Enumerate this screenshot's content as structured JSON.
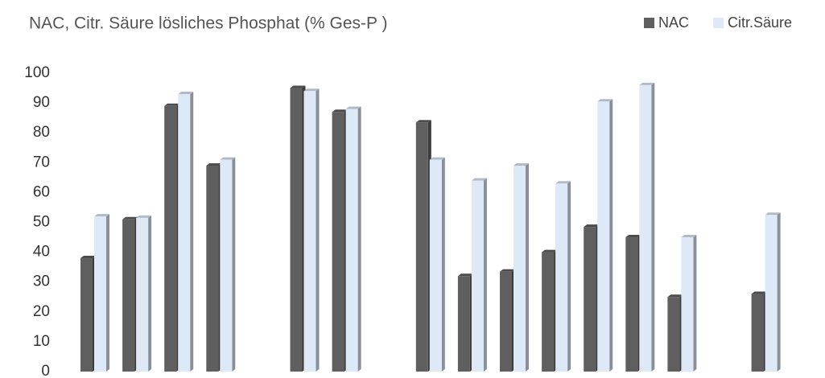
{
  "chart_data": {
    "type": "bar3d",
    "title": "NAC, Citr. Säure lösliches Phosphat (% Ges-P )",
    "categories": [
      null,
      null,
      null,
      null,
      null,
      null,
      null,
      null,
      null,
      null,
      null,
      null,
      null,
      null,
      null,
      null,
      null
    ],
    "series": [
      {
        "name": "NAC",
        "color": "#5f5f5f",
        "values": [
          38,
          51,
          89,
          69,
          null,
          95,
          87,
          null,
          83.5,
          32,
          33.5,
          40,
          48.5,
          45,
          25,
          null,
          26
        ]
      },
      {
        "name": "Citr.Säure",
        "color": "#dde9f7",
        "values": [
          52,
          51.5,
          93,
          71,
          null,
          94,
          88,
          null,
          71,
          64,
          69,
          63,
          90.5,
          96,
          45,
          null,
          52.5
        ]
      }
    ],
    "ylim": [
      0,
      100
    ],
    "yticks": [
      0,
      10,
      20,
      30,
      40,
      50,
      60,
      70,
      80,
      90,
      100
    ]
  }
}
